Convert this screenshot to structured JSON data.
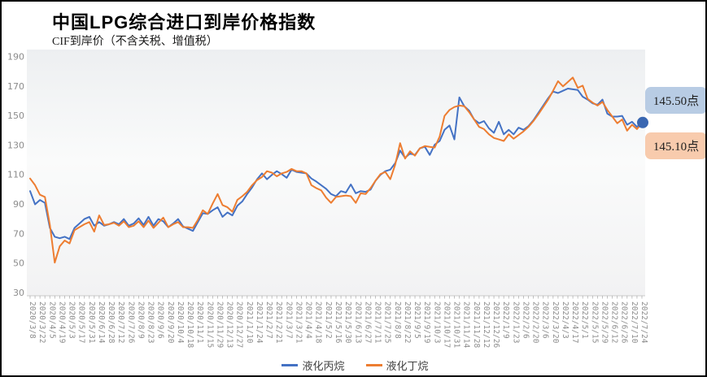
{
  "header": {
    "title": "中国LPG综合进口到岸价格指数",
    "subtitle": "CIF到岸价（不含关税、增值税）"
  },
  "annotations": {
    "propane_last_label": "145.50点",
    "butane_last_label": "145.10点",
    "propane_box_bg": "#b8cce4",
    "butane_box_bg": "#f8cbad"
  },
  "legend": {
    "propane_label": "液化丙烷",
    "butane_label": "液化丁烷"
  },
  "colors": {
    "propane_line": "#4472c4",
    "butane_line": "#ed7d31",
    "end_dot": "#3a67b1",
    "axis_text": "#8c8c8c",
    "tick": "#b0b0b0"
  },
  "chart_data": {
    "type": "line",
    "title": "中国LPG综合进口到岸价格指数",
    "subtitle": "CIF到岸价（不含关税、增值税）",
    "xlabel": "",
    "ylabel": "",
    "ylim": [
      30,
      190
    ],
    "y_ticks": [
      190,
      170,
      150,
      130,
      110,
      90,
      70,
      50,
      30
    ],
    "grid": false,
    "legend_position": "bottom-center",
    "x_axis_tick_labels": [
      "2020/3/8",
      "2020/3/22",
      "2020/4/5",
      "2020/4/19",
      "2020/5/3",
      "2020/5/17",
      "2020/5/31",
      "2020/6/14",
      "2020/6/28",
      "2020/7/12",
      "2020/7/26",
      "2020/8/9",
      "2020/8/23",
      "2020/9/6",
      "2020/9/20",
      "2020/10/4",
      "2020/10/18",
      "2020/11/1",
      "2020/11/15",
      "2020/11/29",
      "2020/12/13",
      "2020/12/27",
      "2021/1/10",
      "2021/1/24",
      "2021/2/7",
      "2021/2/21",
      "2021/3/7",
      "2021/3/21",
      "2021/4/4",
      "2021/4/18",
      "2021/5/2",
      "2021/5/16",
      "2021/5/30",
      "2021/6/13",
      "2021/6/27",
      "2021/7/11",
      "2021/7/25",
      "2021/8/8",
      "2021/8/22",
      "2021/9/5",
      "2021/9/19",
      "2021/10/3",
      "2021/10/17",
      "2021/10/31",
      "2021/11/14",
      "2021/11/28",
      "2021/12/12",
      "2021/12/26",
      "2022/1/9",
      "2022/1/23",
      "2022/2/6",
      "2022/2/20",
      "2022/3/6",
      "2022/3/20",
      "2022/4/3",
      "2022/4/17",
      "2022/5/1",
      "2022/5/15",
      "2022/5/29",
      "2022/6/12",
      "2022/6/26",
      "2022/7/10",
      "2022/7/24"
    ],
    "x": [
      "2020/3/8",
      "2020/3/15",
      "2020/3/22",
      "2020/3/29",
      "2020/4/5",
      "2020/4/12",
      "2020/4/19",
      "2020/4/26",
      "2020/5/3",
      "2020/5/10",
      "2020/5/17",
      "2020/5/24",
      "2020/5/31",
      "2020/6/7",
      "2020/6/14",
      "2020/6/21",
      "2020/6/28",
      "2020/7/5",
      "2020/7/12",
      "2020/7/19",
      "2020/7/26",
      "2020/8/2",
      "2020/8/9",
      "2020/8/16",
      "2020/8/23",
      "2020/8/30",
      "2020/9/6",
      "2020/9/13",
      "2020/9/20",
      "2020/9/27",
      "2020/10/4",
      "2020/10/11",
      "2020/10/18",
      "2020/10/25",
      "2020/11/1",
      "2020/11/8",
      "2020/11/15",
      "2020/11/22",
      "2020/11/29",
      "2020/12/6",
      "2020/12/13",
      "2020/12/20",
      "2020/12/27",
      "2021/1/3",
      "2021/1/10",
      "2021/1/17",
      "2021/1/24",
      "2021/1/31",
      "2021/2/7",
      "2021/2/14",
      "2021/2/21",
      "2021/2/28",
      "2021/3/7",
      "2021/3/14",
      "2021/3/21",
      "2021/3/28",
      "2021/4/4",
      "2021/4/11",
      "2021/4/18",
      "2021/4/25",
      "2021/5/2",
      "2021/5/9",
      "2021/5/16",
      "2021/5/23",
      "2021/5/30",
      "2021/6/6",
      "2021/6/13",
      "2021/6/20",
      "2021/6/27",
      "2021/7/4",
      "2021/7/11",
      "2021/7/18",
      "2021/7/25",
      "2021/8/1",
      "2021/8/8",
      "2021/8/15",
      "2021/8/22",
      "2021/8/29",
      "2021/9/5",
      "2021/9/12",
      "2021/9/19",
      "2021/9/26",
      "2021/10/3",
      "2021/10/10",
      "2021/10/17",
      "2021/10/24",
      "2021/10/31",
      "2021/11/7",
      "2021/11/14",
      "2021/11/21",
      "2021/11/28",
      "2021/12/5",
      "2021/12/12",
      "2021/12/19",
      "2021/12/26",
      "2022/1/2",
      "2022/1/9",
      "2022/1/16",
      "2022/1/23",
      "2022/1/30",
      "2022/2/6",
      "2022/2/13",
      "2022/2/20",
      "2022/2/27",
      "2022/3/6",
      "2022/3/13",
      "2022/3/20",
      "2022/3/27",
      "2022/4/3",
      "2022/4/10",
      "2022/4/17",
      "2022/4/24",
      "2022/5/1",
      "2022/5/8",
      "2022/5/15",
      "2022/5/22",
      "2022/5/29",
      "2022/6/5",
      "2022/6/12",
      "2022/6/19",
      "2022/6/26",
      "2022/7/3",
      "2022/7/10",
      "2022/7/17",
      "2022/7/24"
    ],
    "series": [
      {
        "name": "液化丙烷",
        "color": "#4472c4",
        "last_value": 145.5,
        "values": [
          99,
          90,
          93,
          91,
          74,
          68,
          67,
          68,
          66.5,
          74,
          77,
          80,
          81.5,
          75.5,
          78,
          75.5,
          76.5,
          78,
          76.5,
          80,
          75.5,
          77,
          80.5,
          76,
          81.5,
          75.5,
          80,
          78.5,
          74.5,
          77,
          80,
          75,
          73.5,
          72,
          78,
          84,
          83.5,
          86,
          88,
          81.5,
          84.5,
          82.5,
          89,
          92,
          97,
          101.5,
          107,
          111,
          107,
          110,
          112.5,
          110.5,
          108,
          113.5,
          112,
          111.5,
          111,
          107.5,
          105.5,
          103,
          100.5,
          97,
          95.5,
          99,
          98,
          103.5,
          97.5,
          99,
          98.5,
          100,
          106,
          110,
          112.5,
          113.5,
          118,
          126.5,
          121.5,
          124.5,
          123.5,
          128,
          129,
          123.5,
          130.5,
          133,
          140.5,
          143.5,
          134,
          162.5,
          156.5,
          153.5,
          147.5,
          145,
          146.5,
          141.5,
          138.5,
          146,
          137.5,
          140.5,
          137.5,
          142,
          140.5,
          143,
          147,
          152,
          157,
          162,
          166.5,
          165.5,
          167,
          168.5,
          168,
          167.5,
          163,
          161,
          158.5,
          157.5,
          161,
          151.5,
          149.5,
          149.5,
          150,
          144,
          146,
          142.5,
          145.5
        ]
      },
      {
        "name": "液化丁烷",
        "color": "#ed7d31",
        "last_value": 145.1,
        "values": [
          107.5,
          103,
          96.5,
          95,
          76,
          50.5,
          61.5,
          65.5,
          63.5,
          72.5,
          74.5,
          76.5,
          78,
          71.5,
          82.5,
          76,
          76.5,
          77.5,
          75.5,
          78.5,
          74.5,
          75.5,
          78.5,
          74.5,
          79,
          74,
          77.5,
          81,
          74.5,
          76.5,
          78,
          74.5,
          74.5,
          74,
          79.5,
          86,
          83.5,
          90.5,
          97,
          89.5,
          88,
          85,
          93,
          95.5,
          98.5,
          103,
          106.5,
          108.5,
          112.5,
          111.5,
          109,
          111,
          112,
          114,
          112.5,
          112.5,
          111,
          103,
          101,
          99.5,
          94.5,
          91,
          95,
          95.5,
          96,
          95.5,
          91,
          97.5,
          97,
          101,
          106,
          110.5,
          112,
          107,
          117,
          131.5,
          121,
          126,
          123,
          128,
          129.5,
          129,
          128.5,
          136,
          150,
          154,
          156,
          157,
          156.5,
          152.5,
          147.5,
          142.5,
          141,
          137.5,
          135,
          134,
          133,
          137.5,
          134.5,
          137,
          139.5,
          142.5,
          146.5,
          151,
          156,
          161,
          167,
          173.5,
          170,
          173,
          176,
          169,
          170.5,
          161.5,
          159,
          157,
          159.5,
          154,
          149.5,
          145,
          147.5,
          140,
          144,
          141,
          145.1
        ]
      }
    ]
  }
}
